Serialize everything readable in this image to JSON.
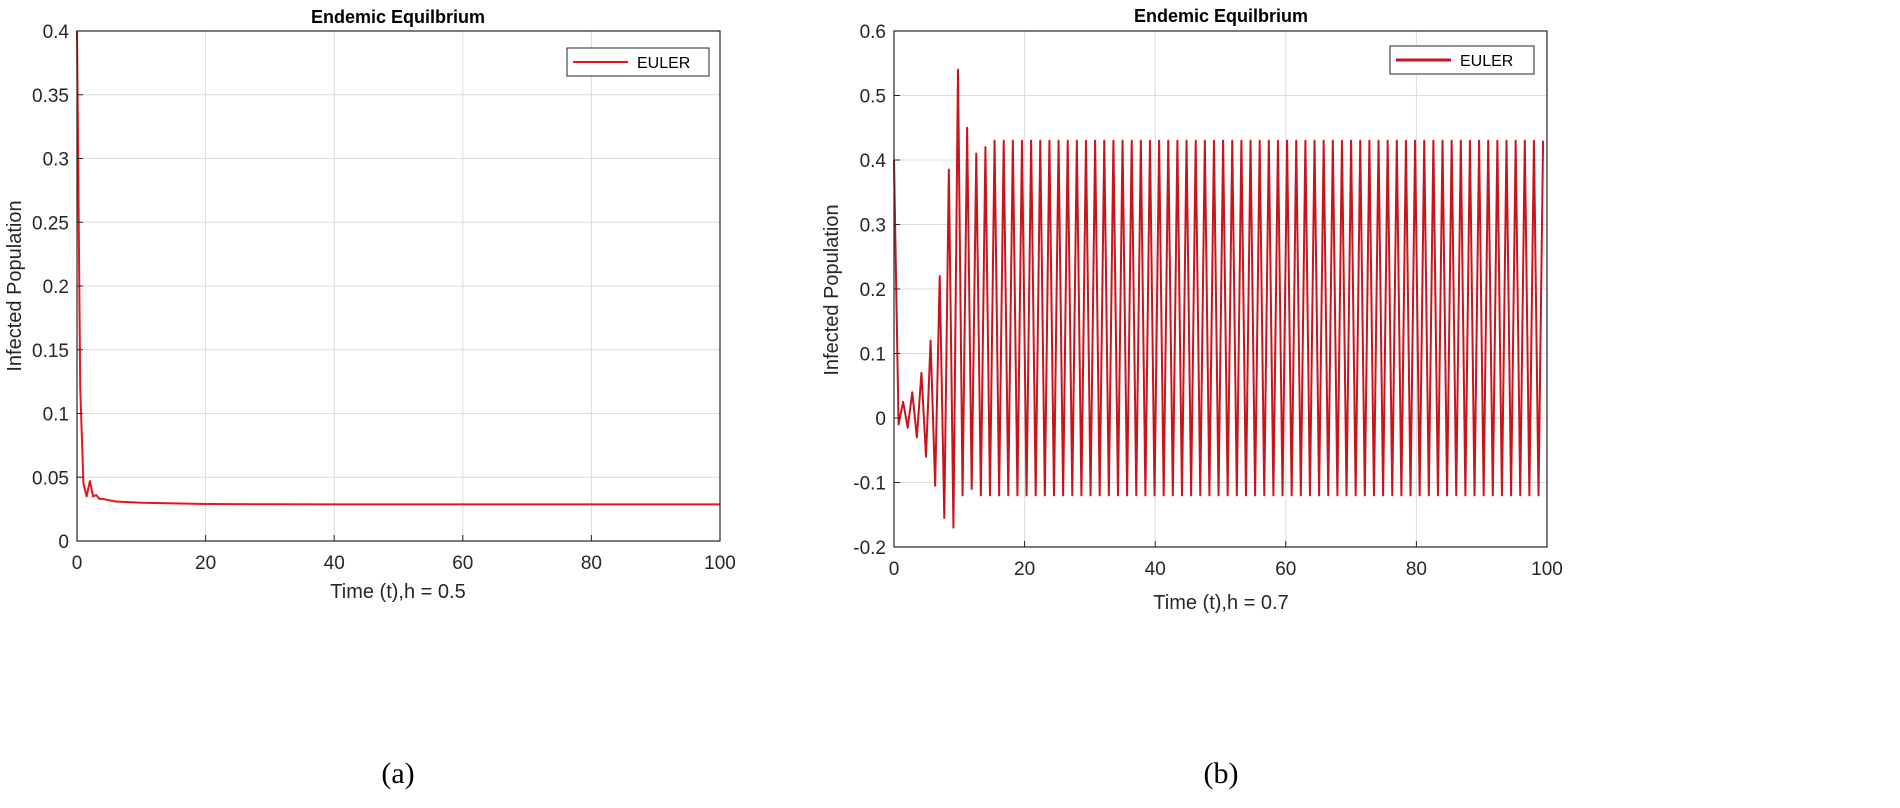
{
  "chart_data": [
    {
      "type": "line",
      "panel_label": "(a)",
      "title": "Endemic Equilbrium",
      "xlabel": "Time (t),h = 0.5",
      "ylabel": "Infected Population",
      "xlim": [
        0,
        100
      ],
      "ylim": [
        0,
        0.4
      ],
      "xticks": [
        0,
        20,
        40,
        60,
        80,
        100
      ],
      "yticks": [
        0,
        0.05,
        0.1,
        0.15,
        0.2,
        0.25,
        0.3,
        0.35,
        0.4
      ],
      "xtick_labels": [
        "0",
        "20",
        "40",
        "60",
        "80",
        "100"
      ],
      "ytick_labels": [
        "0",
        "0.05",
        "0.1",
        "0.15",
        "0.2",
        "0.25",
        "0.3",
        "0.35",
        "0.4"
      ],
      "grid": true,
      "legend_position": "top-right",
      "series": [
        {
          "name": "EULER",
          "color": "#e8141c",
          "x": [
            0,
            0.5,
            1,
            1.5,
            2,
            2.5,
            3,
            3.5,
            4,
            5,
            6,
            8,
            10,
            15,
            20,
            30,
            40,
            60,
            80,
            100
          ],
          "y": [
            0.4,
            0.12,
            0.045,
            0.035,
            0.047,
            0.035,
            0.036,
            0.033,
            0.033,
            0.032,
            0.031,
            0.0305,
            0.03,
            0.0295,
            0.029,
            0.0288,
            0.0287,
            0.0287,
            0.0287,
            0.0287
          ]
        }
      ]
    },
    {
      "type": "line",
      "panel_label": "(b)",
      "title": "Endemic Equilbrium",
      "xlabel": "Time (t),h = 0.7",
      "ylabel": "Infected Population",
      "xlim": [
        0,
        100
      ],
      "ylim": [
        -0.2,
        0.6
      ],
      "xticks": [
        0,
        20,
        40,
        60,
        80,
        100
      ],
      "yticks": [
        -0.2,
        -0.1,
        0,
        0.1,
        0.2,
        0.3,
        0.4,
        0.5,
        0.6
      ],
      "xtick_labels": [
        "0",
        "20",
        "40",
        "60",
        "80",
        "100"
      ],
      "ytick_labels": [
        "-0.2",
        "-0.1",
        "0",
        "0.1",
        "0.2",
        "0.3",
        "0.4",
        "0.5",
        "0.6"
      ],
      "grid": true,
      "legend_position": "top-right",
      "series": [
        {
          "name": "EULER",
          "color": "#c8141c",
          "step": 0.7,
          "x": [
            0,
            0.7,
            1.4,
            2.1,
            2.8,
            3.5,
            4.2,
            4.9,
            5.6,
            6.3,
            7.0,
            7.7,
            8.4,
            9.1,
            9.8,
            10.5,
            11.2,
            11.9,
            12.6,
            13.3,
            14.0,
            14.7
          ],
          "y": [
            0.4,
            -0.01,
            0.025,
            -0.015,
            0.04,
            -0.03,
            0.07,
            -0.06,
            0.12,
            -0.105,
            0.22,
            -0.155,
            0.385,
            -0.17,
            0.54,
            -0.12,
            0.45,
            -0.11,
            0.41,
            -0.12,
            0.42,
            -0.12
          ],
          "steady_high": 0.43,
          "steady_low": -0.12
        }
      ]
    }
  ]
}
